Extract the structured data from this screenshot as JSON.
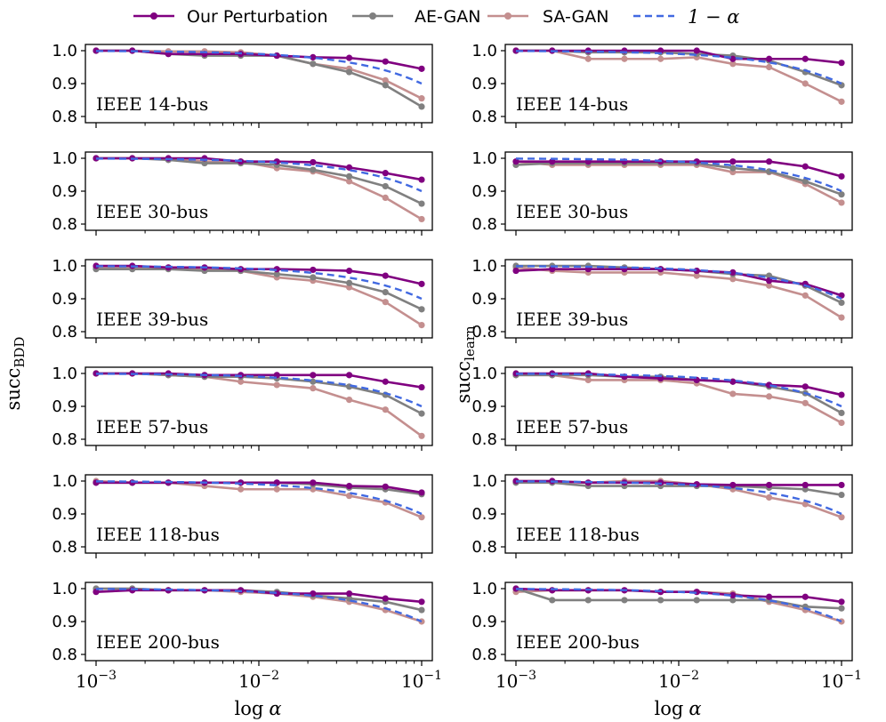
{
  "legend": {
    "entries": [
      {
        "label": "Our Perturbation",
        "color": "#800080",
        "style": "solid-marker"
      },
      {
        "label": "AE-GAN",
        "color": "#808080",
        "style": "solid-marker"
      },
      {
        "label": "SA-GAN",
        "color": "#c48f8f",
        "style": "solid-marker"
      },
      {
        "label": "1 − α",
        "color": "#4169e1",
        "style": "dashed"
      }
    ]
  },
  "axes_text": {
    "ylabel_left_main": "succ",
    "ylabel_left_sub": "BDD",
    "ylabel_right_main": "succ",
    "ylabel_right_sub": "learn",
    "xlabel_main": "log",
    "xlabel_sym": "α",
    "xtick_base": "10",
    "xtick_exps": [
      "−3",
      "−2",
      "−1"
    ],
    "ytick_labels": [
      "1.0",
      "0.9",
      "0.8"
    ]
  },
  "chart_data": {
    "type": "line",
    "x": [
      0.001,
      0.00167,
      0.00278,
      0.00464,
      0.00774,
      0.0129,
      0.0215,
      0.0359,
      0.0599,
      0.1
    ],
    "xscale": "log",
    "xlim": [
      0.001,
      0.1
    ],
    "ylim": [
      0.8,
      1.0
    ],
    "yticks": [
      1.0,
      0.9,
      0.8
    ],
    "xlabel": "log α",
    "ylabels": {
      "left": "succ_BDD",
      "right": "succ_learn"
    },
    "panels": [
      {
        "title": "IEEE 14-bus",
        "col": "left",
        "series": [
          {
            "name": "Our Perturbation",
            "values": [
              1.0,
              1.0,
              0.99,
              0.99,
              0.99,
              0.985,
              0.98,
              0.978,
              0.967,
              0.945
            ]
          },
          {
            "name": "AE-GAN",
            "values": [
              1.0,
              1.0,
              0.99,
              0.985,
              0.985,
              0.985,
              0.96,
              0.935,
              0.895,
              0.83
            ]
          },
          {
            "name": "SA-GAN",
            "values": [
              1.0,
              1.0,
              0.998,
              0.998,
              0.995,
              0.985,
              0.96,
              0.945,
              0.91,
              0.855
            ]
          }
        ]
      },
      {
        "title": "IEEE 14-bus",
        "col": "right",
        "series": [
          {
            "name": "Our Perturbation",
            "values": [
              1.0,
              1.0,
              1.0,
              1.0,
              1.0,
              1.0,
              0.975,
              0.975,
              0.975,
              0.963
            ]
          },
          {
            "name": "AE-GAN",
            "values": [
              1.0,
              1.0,
              0.995,
              0.995,
              0.995,
              0.99,
              0.985,
              0.97,
              0.935,
              0.895
            ]
          },
          {
            "name": "SA-GAN",
            "values": [
              1.0,
              1.0,
              0.975,
              0.975,
              0.975,
              0.98,
              0.96,
              0.95,
              0.9,
              0.845
            ]
          }
        ]
      },
      {
        "title": "IEEE 30-bus",
        "col": "left",
        "series": [
          {
            "name": "Our Perturbation",
            "values": [
              1.0,
              1.0,
              1.0,
              1.0,
              0.99,
              0.99,
              0.988,
              0.972,
              0.955,
              0.935
            ]
          },
          {
            "name": "AE-GAN",
            "values": [
              1.0,
              1.0,
              0.995,
              0.985,
              0.985,
              0.98,
              0.965,
              0.945,
              0.915,
              0.862
            ]
          },
          {
            "name": "SA-GAN",
            "values": [
              1.0,
              1.0,
              1.0,
              0.99,
              0.99,
              0.97,
              0.96,
              0.93,
              0.88,
              0.815
            ]
          }
        ]
      },
      {
        "title": "IEEE 30-bus",
        "col": "right",
        "series": [
          {
            "name": "Our Perturbation",
            "values": [
              0.99,
              0.99,
              0.99,
              0.99,
              0.99,
              0.99,
              0.99,
              0.99,
              0.975,
              0.945
            ]
          },
          {
            "name": "AE-GAN",
            "values": [
              0.98,
              0.985,
              0.985,
              0.985,
              0.985,
              0.985,
              0.97,
              0.96,
              0.93,
              0.89
            ]
          },
          {
            "name": "SA-GAN",
            "values": [
              0.99,
              0.98,
              0.98,
              0.98,
              0.98,
              0.98,
              0.958,
              0.958,
              0.922,
              0.865
            ]
          }
        ]
      },
      {
        "title": "IEEE 39-bus",
        "col": "left",
        "series": [
          {
            "name": "Our Perturbation",
            "values": [
              1.0,
              1.0,
              0.995,
              0.995,
              0.99,
              0.99,
              0.988,
              0.985,
              0.97,
              0.945
            ]
          },
          {
            "name": "AE-GAN",
            "values": [
              0.99,
              0.99,
              0.99,
              0.985,
              0.985,
              0.975,
              0.965,
              0.948,
              0.92,
              0.868
            ]
          },
          {
            "name": "SA-GAN",
            "values": [
              0.995,
              0.995,
              0.995,
              0.99,
              0.985,
              0.965,
              0.955,
              0.935,
              0.89,
              0.82
            ]
          }
        ]
      },
      {
        "title": "IEEE 39-bus",
        "col": "right",
        "series": [
          {
            "name": "Our Perturbation",
            "values": [
              0.985,
              0.99,
              0.99,
              0.99,
              0.99,
              0.985,
              0.98,
              0.955,
              0.945,
              0.91
            ]
          },
          {
            "name": "AE-GAN",
            "values": [
              1.0,
              1.0,
              1.0,
              0.995,
              0.99,
              0.985,
              0.975,
              0.97,
              0.94,
              0.888
            ]
          },
          {
            "name": "SA-GAN",
            "values": [
              0.995,
              0.985,
              0.98,
              0.98,
              0.98,
              0.97,
              0.96,
              0.94,
              0.91,
              0.843
            ]
          }
        ]
      },
      {
        "title": "IEEE 57-bus",
        "col": "left",
        "series": [
          {
            "name": "Our Perturbation",
            "values": [
              1.0,
              1.0,
              1.0,
              0.995,
              0.995,
              0.995,
              0.995,
              0.995,
              0.975,
              0.958
            ]
          },
          {
            "name": "AE-GAN",
            "values": [
              1.0,
              1.0,
              0.995,
              0.99,
              0.99,
              0.985,
              0.975,
              0.96,
              0.935,
              0.878
            ]
          },
          {
            "name": "SA-GAN",
            "values": [
              1.0,
              1.0,
              0.995,
              0.99,
              0.975,
              0.965,
              0.955,
              0.92,
              0.89,
              0.81
            ]
          }
        ]
      },
      {
        "title": "IEEE 57-bus",
        "col": "right",
        "series": [
          {
            "name": "Our Perturbation",
            "values": [
              1.0,
              1.0,
              1.0,
              0.99,
              0.985,
              0.98,
              0.975,
              0.965,
              0.96,
              0.935
            ]
          },
          {
            "name": "AE-GAN",
            "values": [
              0.995,
              0.995,
              0.995,
              0.99,
              0.99,
              0.98,
              0.975,
              0.96,
              0.94,
              0.88
            ]
          },
          {
            "name": "SA-GAN",
            "values": [
              0.995,
              0.995,
              0.98,
              0.98,
              0.98,
              0.97,
              0.938,
              0.93,
              0.91,
              0.85
            ]
          }
        ]
      },
      {
        "title": "IEEE 118-bus",
        "col": "left",
        "series": [
          {
            "name": "Our Perturbation",
            "values": [
              0.995,
              0.995,
              0.995,
              0.995,
              0.995,
              0.995,
              0.995,
              0.985,
              0.983,
              0.965
            ]
          },
          {
            "name": "AE-GAN",
            "values": [
              0.995,
              0.995,
              0.995,
              0.995,
              0.995,
              0.995,
              0.99,
              0.98,
              0.975,
              0.96
            ]
          },
          {
            "name": "SA-GAN",
            "values": [
              1.0,
              0.995,
              0.995,
              0.985,
              0.975,
              0.975,
              0.975,
              0.955,
              0.935,
              0.89
            ]
          }
        ]
      },
      {
        "title": "IEEE 118-bus",
        "col": "right",
        "series": [
          {
            "name": "Our Perturbation",
            "values": [
              1.0,
              1.0,
              0.995,
              0.995,
              0.995,
              0.99,
              0.988,
              0.988,
              0.988,
              0.988
            ]
          },
          {
            "name": "AE-GAN",
            "values": [
              0.995,
              0.995,
              0.985,
              0.985,
              0.985,
              0.985,
              0.985,
              0.98,
              0.975,
              0.958
            ]
          },
          {
            "name": "SA-GAN",
            "values": [
              1.0,
              1.0,
              0.995,
              1.0,
              1.0,
              0.99,
              0.975,
              0.95,
              0.93,
              0.89
            ]
          }
        ]
      },
      {
        "title": "IEEE 200-bus",
        "col": "left",
        "series": [
          {
            "name": "Our Perturbation",
            "values": [
              0.99,
              0.995,
              0.995,
              0.995,
              0.995,
              0.985,
              0.985,
              0.985,
              0.97,
              0.96
            ]
          },
          {
            "name": "AE-GAN",
            "values": [
              1.0,
              1.0,
              0.995,
              0.995,
              0.995,
              0.99,
              0.98,
              0.97,
              0.96,
              0.935
            ]
          },
          {
            "name": "SA-GAN",
            "values": [
              1.0,
              1.0,
              0.995,
              0.995,
              0.99,
              0.985,
              0.975,
              0.96,
              0.935,
              0.9
            ]
          }
        ]
      },
      {
        "title": "IEEE 200-bus",
        "col": "right",
        "series": [
          {
            "name": "Our Perturbation",
            "values": [
              1.0,
              0.995,
              0.995,
              0.995,
              0.99,
              0.99,
              0.98,
              0.975,
              0.975,
              0.96
            ]
          },
          {
            "name": "AE-GAN",
            "values": [
              1.0,
              0.965,
              0.965,
              0.965,
              0.965,
              0.965,
              0.965,
              0.965,
              0.945,
              0.94
            ]
          },
          {
            "name": "SA-GAN",
            "values": [
              0.99,
              0.995,
              0.995,
              0.995,
              0.99,
              0.99,
              0.985,
              0.96,
              0.935,
              0.9
            ]
          }
        ]
      }
    ]
  }
}
